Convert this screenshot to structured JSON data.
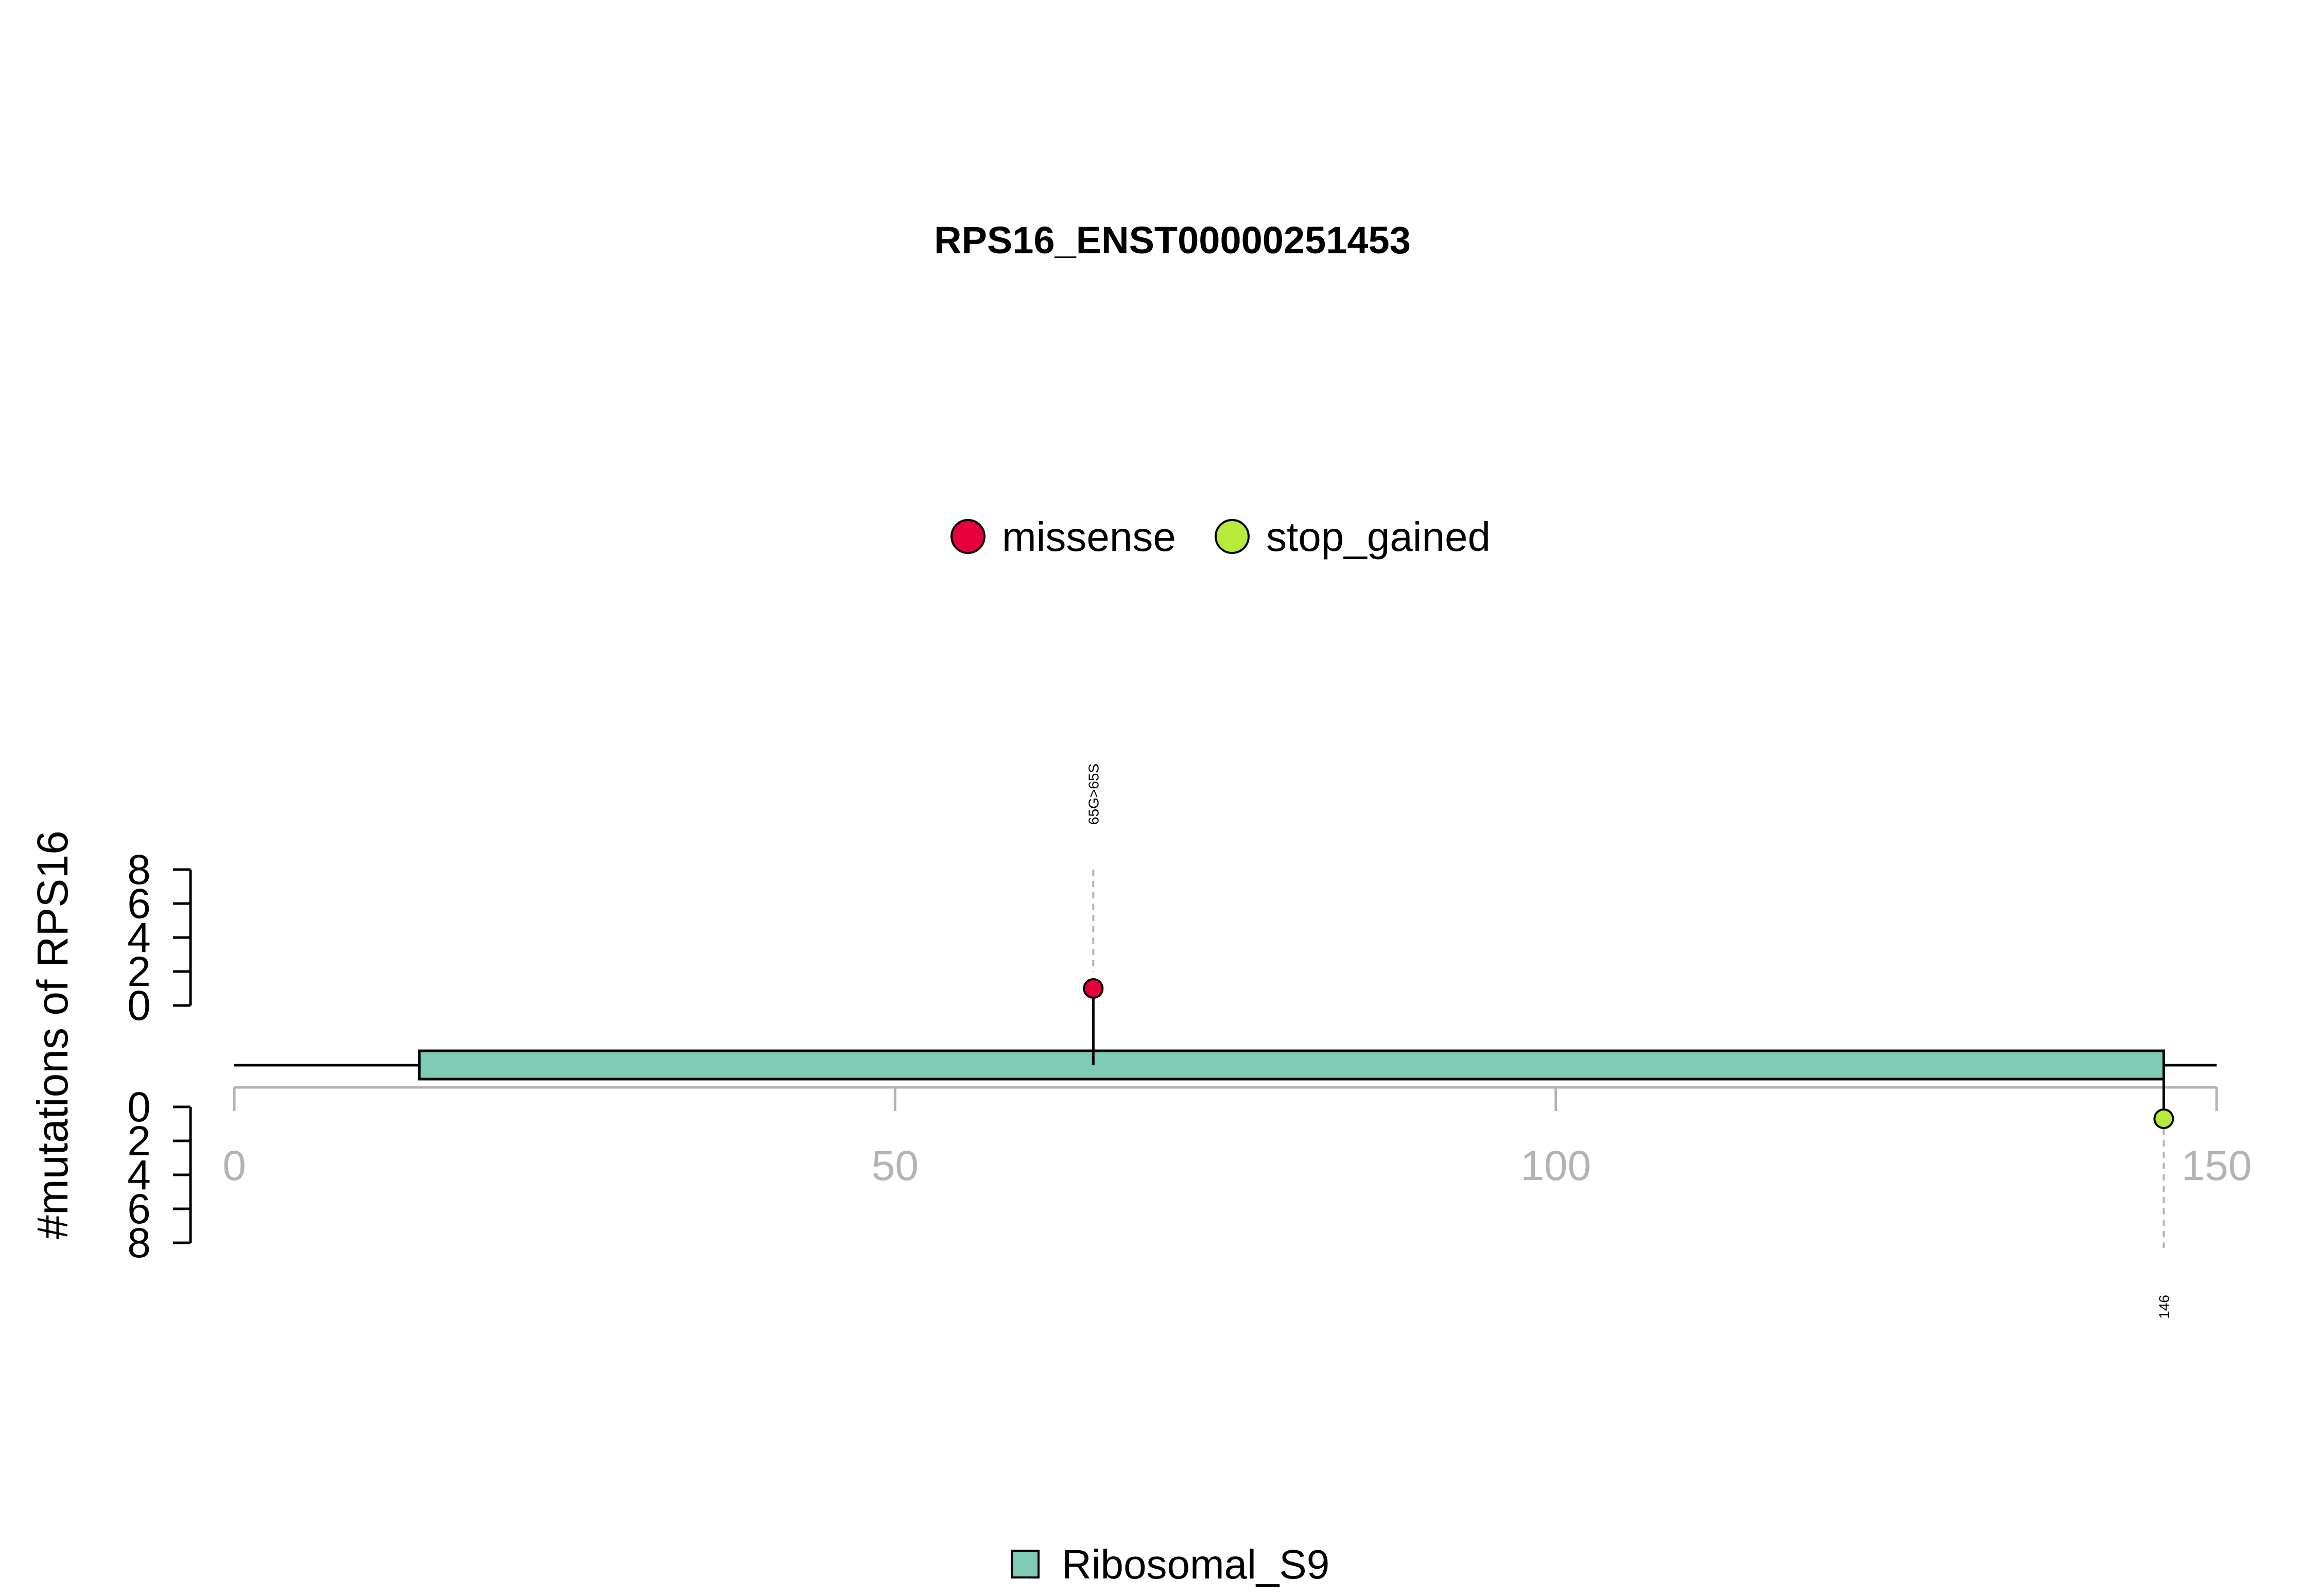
{
  "chart_data": {
    "type": "lollipop",
    "title": "RPS16_ENST00000251453",
    "ylabel": "#mutations of RPS16",
    "protein_length": 150,
    "xlim": [
      0,
      150
    ],
    "x_ticks": [
      "0",
      "50",
      "100",
      "150"
    ],
    "y_ticks": [
      "0",
      "2",
      "4",
      "6",
      "8"
    ],
    "ylim": [
      0,
      8
    ],
    "legend_mutations": [
      {
        "label": "missense",
        "color": "#E6003C"
      },
      {
        "label": "stop_gained",
        "color": "#B8EA3B"
      }
    ],
    "domains": [
      {
        "name": "Ribosomal_S9",
        "start": 14,
        "end": 146,
        "color": "#7FCBB5"
      }
    ],
    "mutations_top": [
      {
        "position": 65,
        "count": 1,
        "type": "missense",
        "label": "65G>65S",
        "color": "#E6003C"
      }
    ],
    "mutations_bottom": [
      {
        "position": 146,
        "count": 1,
        "type": "stop_gained",
        "label": "146",
        "color": "#B8EA3B"
      }
    ]
  }
}
